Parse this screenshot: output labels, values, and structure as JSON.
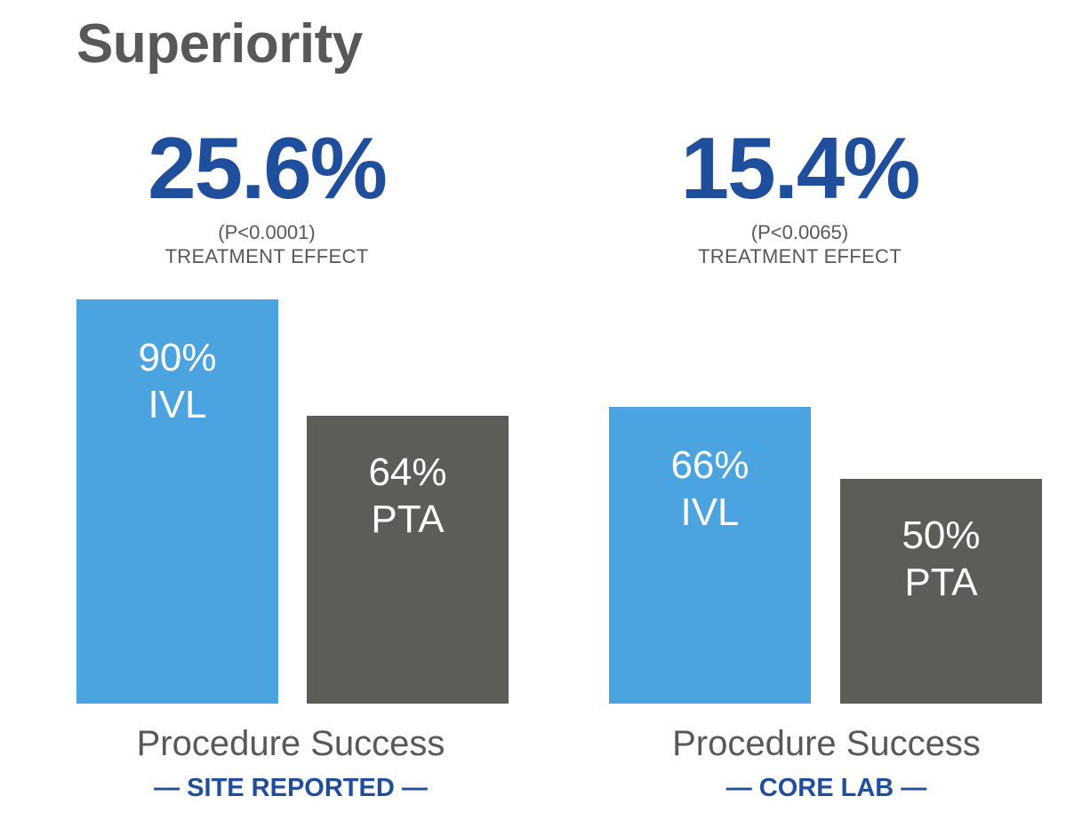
{
  "title": "Superiority",
  "colors": {
    "accent_blue": "#1f4e9c",
    "ivl_bar": "#4ba4e0",
    "pta_bar": "#5c5c58",
    "text_gray": "#58585a"
  },
  "panels": [
    {
      "effect": "25.6%",
      "pvalue": "(P<0.0001)",
      "effect_label": "TREATMENT EFFECT",
      "bars": [
        {
          "value_label": "90%",
          "group": "IVL"
        },
        {
          "value_label": "64%",
          "group": "PTA"
        }
      ],
      "metric": "Procedure Success",
      "source": "— SITE REPORTED —"
    },
    {
      "effect": "15.4%",
      "pvalue": "(P<0.0065)",
      "effect_label": "TREATMENT EFFECT",
      "bars": [
        {
          "value_label": "66%",
          "group": "IVL"
        },
        {
          "value_label": "50%",
          "group": "PTA"
        }
      ],
      "metric": "Procedure Success",
      "source": "— CORE LAB —"
    }
  ],
  "chart_data": [
    {
      "type": "bar",
      "categories": [
        "IVL",
        "PTA"
      ],
      "values": [
        90,
        64
      ],
      "title": "Procedure Success",
      "subtitle": "SITE REPORTED",
      "annotation": "25.6% (P<0.0001) TREATMENT EFFECT",
      "ylim": [
        0,
        100
      ],
      "grid": false
    },
    {
      "type": "bar",
      "categories": [
        "IVL",
        "PTA"
      ],
      "values": [
        66,
        50
      ],
      "title": "Procedure Success",
      "subtitle": "CORE LAB",
      "annotation": "15.4% (P<0.0065) TREATMENT EFFECT",
      "ylim": [
        0,
        100
      ],
      "grid": false
    }
  ]
}
